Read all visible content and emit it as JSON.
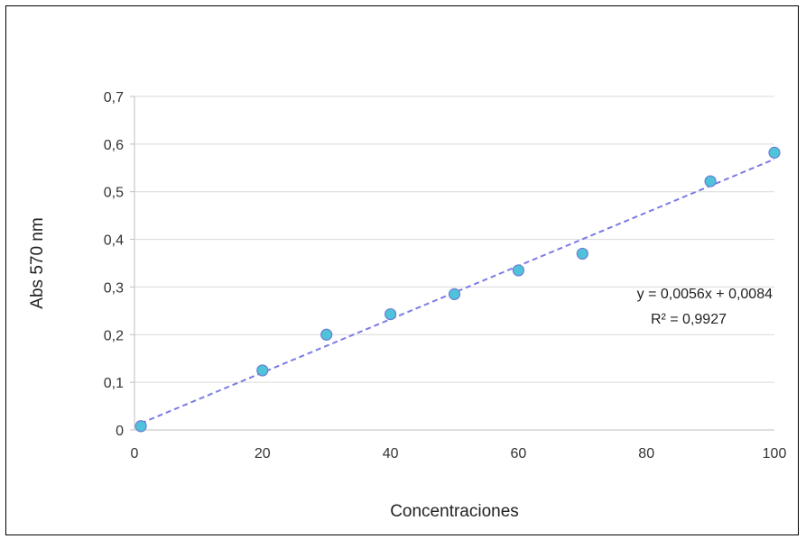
{
  "chart_data": {
    "type": "scatter",
    "title": "",
    "xlabel": "Concentraciones",
    "ylabel": "Abs 570 nm",
    "xlim": [
      0,
      100
    ],
    "ylim": [
      0,
      0.7
    ],
    "x_ticks": [
      0,
      20,
      40,
      60,
      80,
      100
    ],
    "x_tick_labels": [
      "0",
      "20",
      "40",
      "60",
      "80",
      "100"
    ],
    "y_ticks": [
      0,
      0.1,
      0.2,
      0.3,
      0.4,
      0.5,
      0.6,
      0.7
    ],
    "y_tick_labels": [
      "0",
      "0,1",
      "0,2",
      "0,3",
      "0,4",
      "0,5",
      "0,6",
      "0,7"
    ],
    "grid": "horizontal",
    "series": [
      {
        "x": [
          1,
          20,
          30,
          40,
          50,
          60,
          70,
          90,
          100
        ],
        "y": [
          0.008,
          0.125,
          0.2,
          0.243,
          0.285,
          0.335,
          0.37,
          0.522,
          0.582
        ],
        "marker_color": "#4fc3d9",
        "marker_edge": "#6a7ed6"
      }
    ],
    "trendline": {
      "type": "linear",
      "slope": 0.0056,
      "intercept": 0.0084,
      "x_range": [
        1,
        100
      ],
      "color": "#7b7be6",
      "style": "dashed",
      "equation_label": "y = 0,0056x + 0,0084",
      "r2_label": "R² = 0,9927"
    }
  }
}
